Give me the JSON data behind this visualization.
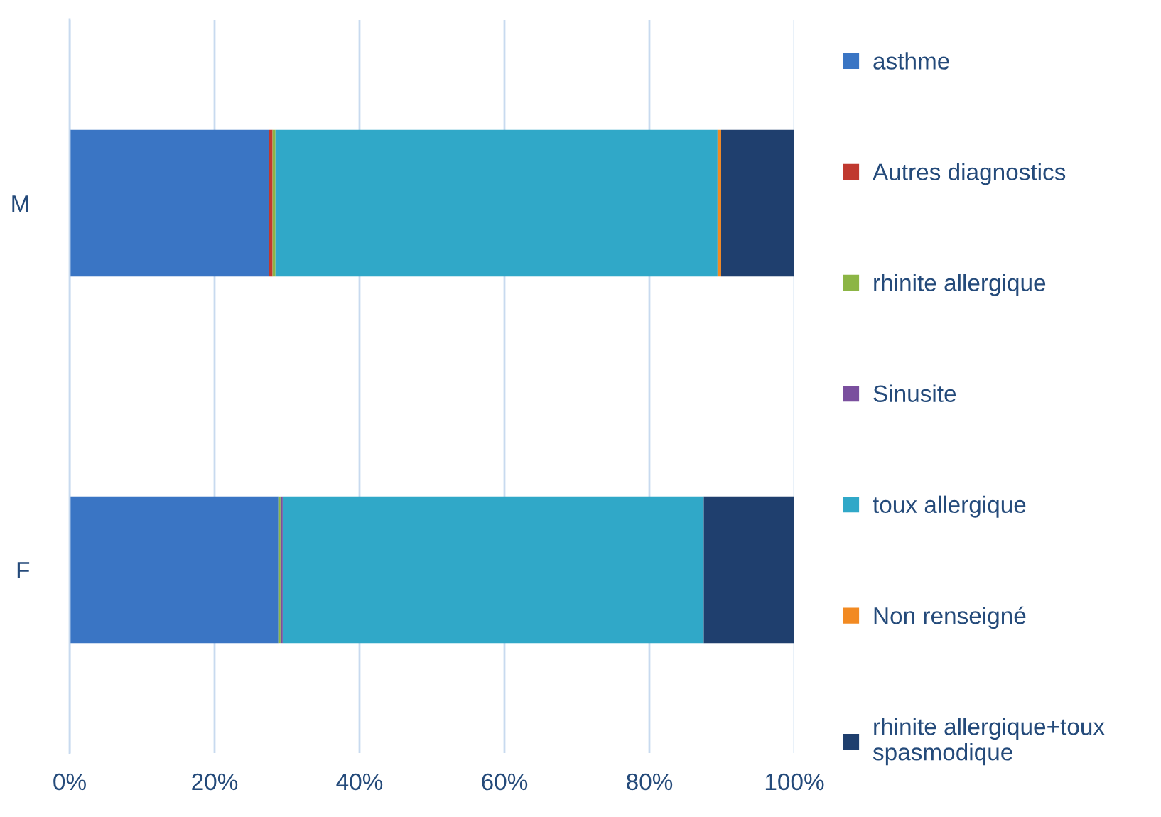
{
  "chart_data": {
    "type": "bar",
    "orientation": "horizontal",
    "stacked": true,
    "categories": [
      "M",
      "F"
    ],
    "series": [
      {
        "name": "asthme",
        "color": "#3a75c4",
        "values": [
          27.5,
          28.8
        ]
      },
      {
        "name": "Autres diagnostics",
        "color": "#c0392f",
        "values": [
          0.5,
          0
        ]
      },
      {
        "name": "rhinite allergique",
        "color": "#8cb545",
        "values": [
          0.4,
          0.3
        ]
      },
      {
        "name": "Sinusite",
        "color": "#7a4f9e",
        "values": [
          0,
          0.3
        ]
      },
      {
        "name": "toux allergique",
        "color": "#30a8c8",
        "values": [
          61.0,
          58.1
        ]
      },
      {
        "name": "Non renseigné",
        "color": "#f28a22",
        "values": [
          0.5,
          0
        ]
      },
      {
        "name": "rhinite allergique+toux spasmodique",
        "color": "#1f3f6e",
        "values": [
          10.1,
          12.5
        ]
      }
    ],
    "xlim": [
      0,
      100
    ],
    "xticks": [
      {
        "value": 0,
        "label": "0%"
      },
      {
        "value": 20,
        "label": "20%"
      },
      {
        "value": 40,
        "label": "40%"
      },
      {
        "value": 60,
        "label": "60%"
      },
      {
        "value": 80,
        "label": "80%"
      },
      {
        "value": 100,
        "label": "100%"
      }
    ],
    "grid": "x",
    "legend": "right"
  }
}
